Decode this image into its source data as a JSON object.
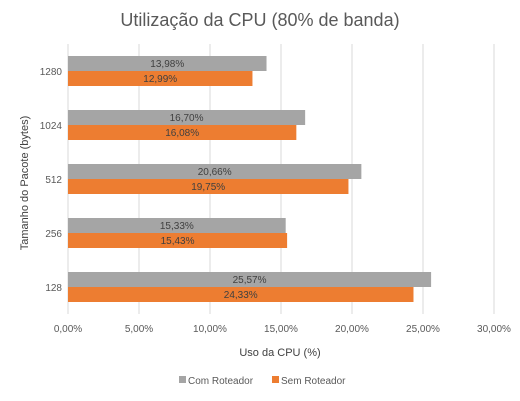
{
  "chart_data": {
    "type": "bar",
    "orientation": "horizontal",
    "title": "Utilização da CPU (80% de banda)",
    "xlabel": "Uso da CPU (%)",
    "ylabel": "Tamanho do Pacote (bytes)",
    "categories": [
      "128",
      "256",
      "512",
      "1024",
      "1280"
    ],
    "xlim": [
      0,
      30
    ],
    "xticks": [
      0,
      5,
      10,
      15,
      20,
      25,
      30
    ],
    "xtick_labels": [
      "0,00%",
      "5,00%",
      "10,00%",
      "15,00%",
      "20,00%",
      "25,00%",
      "30,00%"
    ],
    "grid": "vertical",
    "legend_position": "bottom",
    "series": [
      {
        "name": "Com Roteador",
        "color": "#a5a5a5",
        "values": [
          25.57,
          15.33,
          20.66,
          16.7,
          13.98
        ],
        "labels": [
          "25,57%",
          "15,33%",
          "20,66%",
          "16,70%",
          "13,98%"
        ]
      },
      {
        "name": "Sem Roteador",
        "color": "#ed7d31",
        "values": [
          24.33,
          15.43,
          19.75,
          16.08,
          12.99
        ],
        "labels": [
          "24,33%",
          "15,43%",
          "19,75%",
          "16,08%",
          "12,99%"
        ]
      }
    ]
  }
}
